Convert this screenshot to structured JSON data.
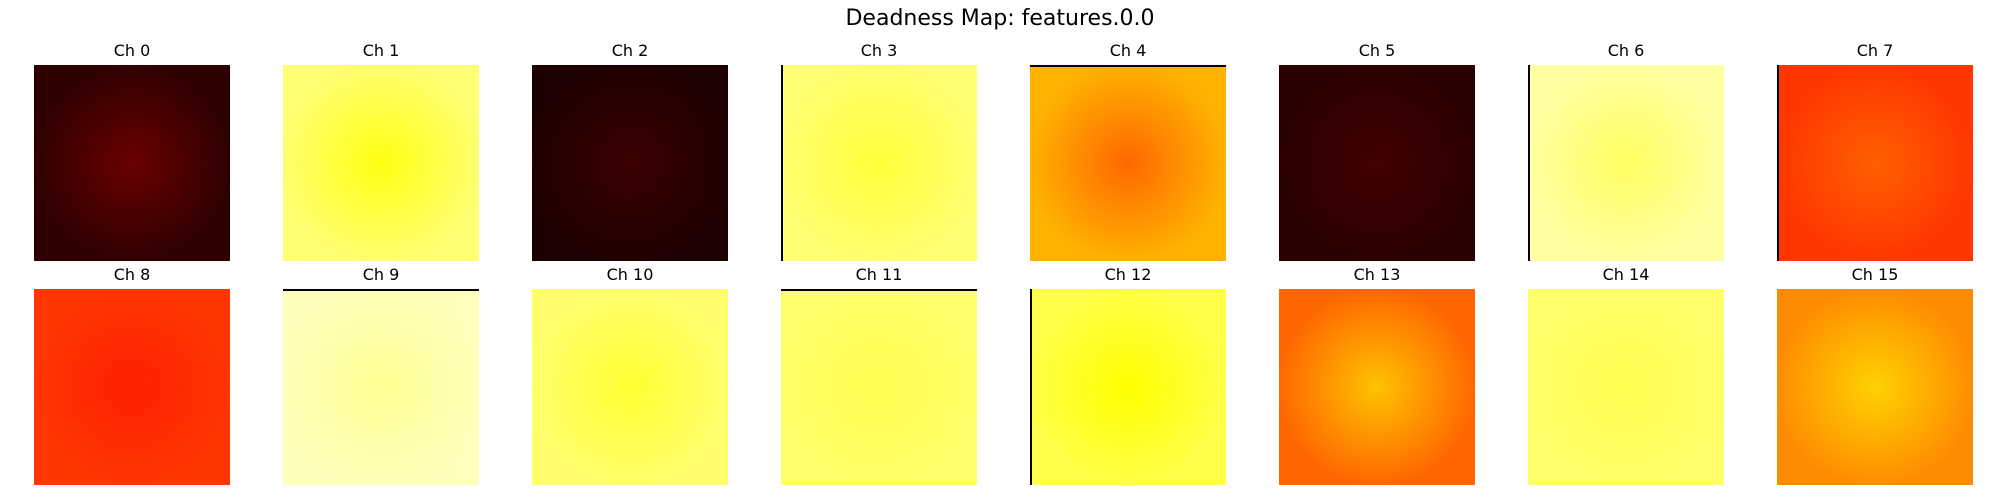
{
  "chart_data": {
    "type": "heatmap",
    "title": "Deadness Map: features.0.0",
    "colormap": "hot",
    "grid": false,
    "axes_visible": false,
    "rows": 2,
    "columns": 8,
    "panels": [
      {
        "label": "Ch 0",
        "edge_color": "#2f0000",
        "center_color": "#6a0000",
        "dark_edge": "none"
      },
      {
        "label": "Ch 1",
        "edge_color": "#ffff72",
        "center_color": "#ffff12",
        "dark_edge": "none"
      },
      {
        "label": "Ch 2",
        "edge_color": "#1f0000",
        "center_color": "#3c0000",
        "dark_edge": "none"
      },
      {
        "label": "Ch 3",
        "edge_color": "#ffff72",
        "center_color": "#ffff3a",
        "dark_edge": "left"
      },
      {
        "label": "Ch 4",
        "edge_color": "#ffb200",
        "center_color": "#ff6800",
        "dark_edge": "top"
      },
      {
        "label": "Ch 5",
        "edge_color": "#2b0000",
        "center_color": "#420000",
        "dark_edge": "none"
      },
      {
        "label": "Ch 6",
        "edge_color": "#ffffa2",
        "center_color": "#ffff62",
        "dark_edge": "left"
      },
      {
        "label": "Ch 7",
        "edge_color": "#ff3600",
        "center_color": "#ff6000",
        "dark_edge": "left"
      },
      {
        "label": "Ch 8",
        "edge_color": "#ff3600",
        "center_color": "#ff2000",
        "dark_edge": "none"
      },
      {
        "label": "Ch 9",
        "edge_color": "#ffffba",
        "center_color": "#ffff92",
        "dark_edge": "top"
      },
      {
        "label": "Ch 10",
        "edge_color": "#ffff6e",
        "center_color": "#ffff32",
        "dark_edge": "none"
      },
      {
        "label": "Ch 11",
        "edge_color": "#ffff6a",
        "center_color": "#ffff52",
        "dark_edge": "top"
      },
      {
        "label": "Ch 12",
        "edge_color": "#ffff4a",
        "center_color": "#ffff00",
        "dark_edge": "left"
      },
      {
        "label": "Ch 13",
        "edge_color": "#ff6600",
        "center_color": "#ffc200",
        "dark_edge": "none"
      },
      {
        "label": "Ch 14",
        "edge_color": "#ffff6a",
        "center_color": "#ffff52",
        "dark_edge": "none"
      },
      {
        "label": "Ch 15",
        "edge_color": "#ff8c00",
        "center_color": "#ffd200",
        "dark_edge": "none"
      }
    ]
  }
}
